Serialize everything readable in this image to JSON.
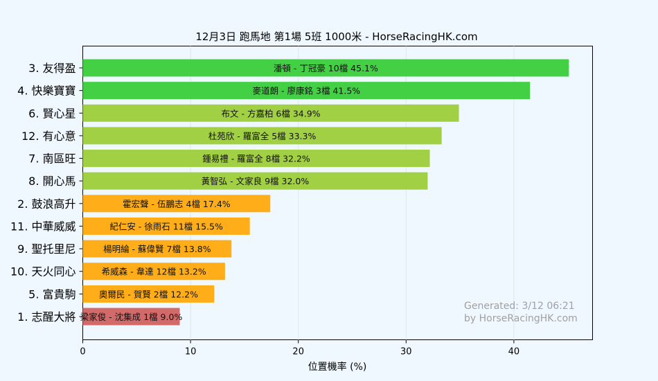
{
  "chart_data": {
    "type": "bar",
    "orientation": "horizontal",
    "title": "12月3日  跑馬地  第1場  5班  1000米 - HorseRacingHK.com",
    "xlabel": "位置機率 (%)",
    "ylabel": "",
    "xlim": [
      0,
      47.3
    ],
    "xticks": [
      "0",
      "10",
      "20",
      "30",
      "40"
    ],
    "grid": true,
    "categories": [
      "3. 友得盈",
      "4. 快樂寶寶",
      "6. 賢心星",
      "12. 有心意",
      "7. 南區旺",
      "8. 開心馬",
      "2. 鼓浪高升",
      "11. 中華威威",
      "9. 聖托里尼",
      "10. 天火同心",
      "5. 富貴駒",
      "1. 志醒大將"
    ],
    "values": [
      45.1,
      41.5,
      34.9,
      33.3,
      32.2,
      32.0,
      17.4,
      15.5,
      13.8,
      13.2,
      12.2,
      9.0
    ],
    "bar_labels": [
      "潘頓 - 丁冠豪 10檔  45.1%",
      "麥道朗 - 廖康銘 3檔  41.5%",
      "布文 - 方嘉柏 6檔  34.9%",
      "杜苑欣 - 羅富全 5檔  33.3%",
      "鍾易禮 - 羅富全 8檔  32.2%",
      "黃智弘 - 文家良 9檔  32.0%",
      "霍宏聲 - 伍鵬志 4檔  17.4%",
      "紀仁安 - 徐雨石 11檔  15.5%",
      "楊明綸 - 蘇偉賢 7檔  13.8%",
      "希威森 - 韋達 12檔  13.2%",
      "奧爾民 - 賀賢 2檔  12.2%",
      "梁家俊 - 沈集成 1檔  9.0%"
    ],
    "colors": [
      "#44d044",
      "#44d044",
      "#a2d044",
      "#a2d044",
      "#a2d044",
      "#a2d044",
      "#ffae1a",
      "#ffae1a",
      "#ffae1a",
      "#ffae1a",
      "#ffae1a",
      "#d26a6a"
    ],
    "watermark": [
      "Generated: 3/12 06:21",
      "by HorseRacingHK.com"
    ]
  }
}
